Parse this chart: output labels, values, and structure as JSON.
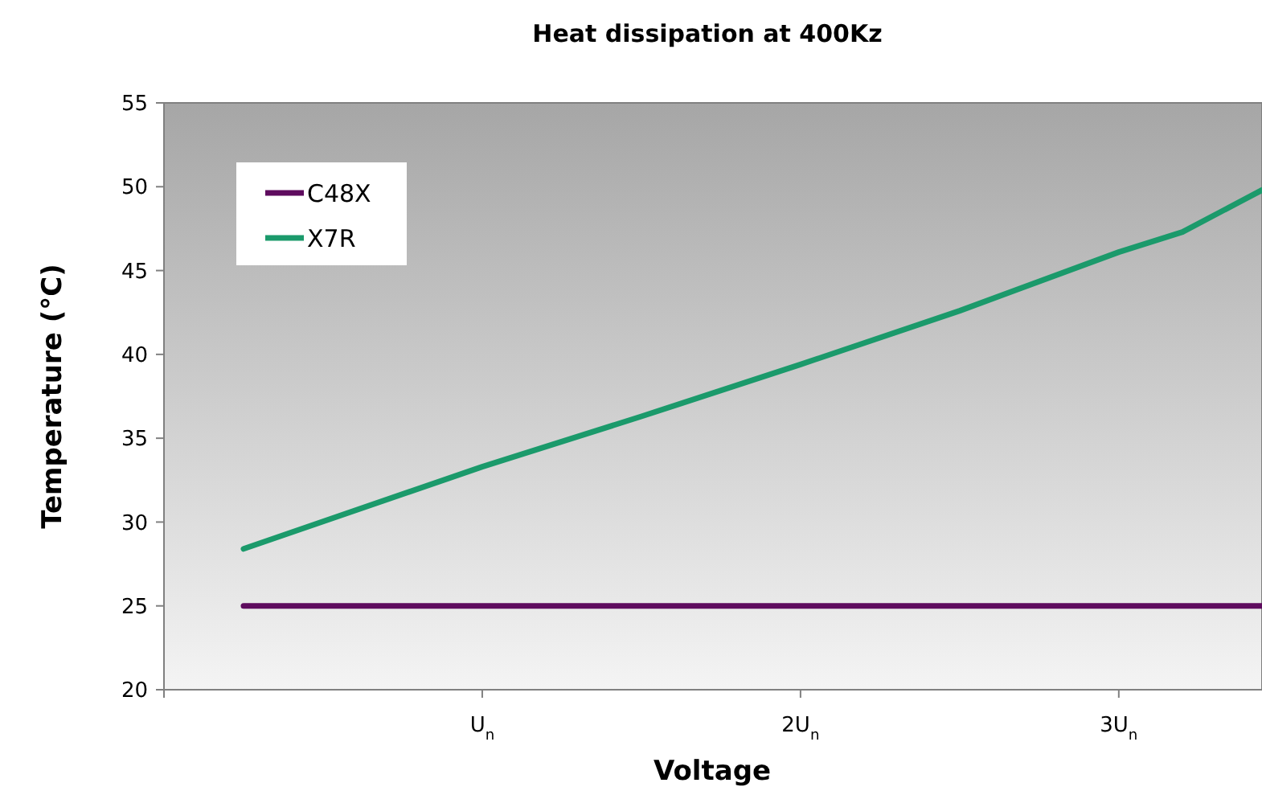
{
  "chart_data": {
    "type": "line",
    "title": "Heat dissipation at 400Kz",
    "xlabel": "Voltage",
    "ylabel": "Temperature (°C)",
    "series": [
      {
        "name": "C48X",
        "color": "#5e0b5e",
        "x": [
          0.25,
          3.45
        ],
        "values": [
          25,
          25
        ]
      },
      {
        "name": "X7R",
        "color": "#1b9a6b",
        "x": [
          0.25,
          1,
          1.5,
          2,
          2.5,
          3,
          3.2,
          3.45
        ],
        "values": [
          28.4,
          33.3,
          36.3,
          39.4,
          42.6,
          46.1,
          47.3,
          49.8
        ]
      }
    ],
    "xlim": [
      0,
      3.45
    ],
    "xticks": [
      {
        "value": 0,
        "label": null
      },
      {
        "value": 1,
        "label": "U$_{n}$"
      },
      {
        "value": 2,
        "label": "2U$_{n}$"
      },
      {
        "value": 3,
        "label": "3U$_{n}$"
      }
    ],
    "ylim": [
      20,
      55
    ],
    "yticks": [
      20,
      25,
      30,
      35,
      40,
      45,
      50,
      55
    ],
    "legend": "top left",
    "marker": "none",
    "line_style": "solid",
    "grid": false
  }
}
